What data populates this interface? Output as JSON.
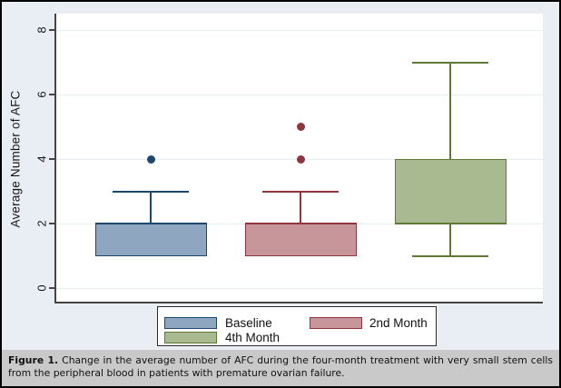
{
  "figure": {
    "caption_label": "Figure 1.",
    "caption_text": "Change in the average number of AFC during the four-month treatment with very small stem cells from the peripheral blood in patients with premature ovarian failure."
  },
  "colors": {
    "graph_background": "#e9eef4",
    "plot_background": "#ffffff",
    "gridline": "#e7eef2",
    "axis_line": "#454545",
    "caption_background": "#c9c9c9",
    "legend_border": "#2a2a2a"
  },
  "chart_data": {
    "type": "boxplot",
    "title": "",
    "xlabel": "",
    "ylabel": "Average Number of AFC",
    "ylim": [
      0,
      8
    ],
    "yticks": [
      0,
      2,
      4,
      6,
      8
    ],
    "grid": true,
    "legend_position": "bottom-center",
    "series": [
      {
        "name": "Baseline",
        "q1": 1,
        "median": 2,
        "q3": 2,
        "whisker_low": 1,
        "whisker_high": 3,
        "outliers": [
          4
        ],
        "fill": "#8fa6c1",
        "stroke": "#1d486e"
      },
      {
        "name": "2nd Month",
        "q1": 1,
        "median": 2,
        "q3": 2,
        "whisker_low": 1,
        "whisker_high": 3,
        "outliers": [
          4,
          5
        ],
        "fill": "#c7969a",
        "stroke": "#90353b"
      },
      {
        "name": "4th Month",
        "q1": 2,
        "median": 2,
        "q3": 4,
        "whisker_low": 1,
        "whisker_high": 7,
        "outliers": [],
        "fill": "#a9ba90",
        "stroke": "#5e7a36"
      }
    ]
  }
}
